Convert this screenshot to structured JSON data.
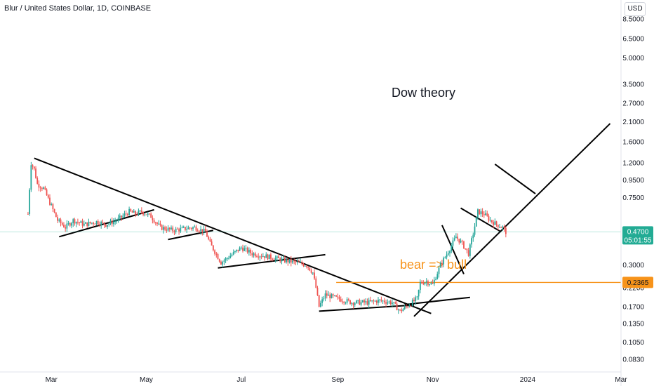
{
  "header": {
    "symbol_title": "Blur / United States Dollar, 1D, COINBASE",
    "currency": "USD"
  },
  "annotations": {
    "dow_theory": "Dow theory",
    "bear_bull": "bear => bull"
  },
  "price_labels": {
    "last_price": "0.4700",
    "countdown": "05:01:55",
    "level": "0.2365"
  },
  "colors": {
    "up": "#26a69a",
    "down": "#ef5350",
    "level": "#f7931a",
    "last": "#22ab94",
    "line": "#000000"
  },
  "chart_data": {
    "type": "candlestick",
    "y_scale": "log",
    "ylim": [
      0.07,
      11
    ],
    "x_range": [
      "2023-01-27",
      "2024-03-01"
    ],
    "x_ticks": [
      {
        "date": "2023-03-01",
        "label": "Mar"
      },
      {
        "date": "2023-05-01",
        "label": "May"
      },
      {
        "date": "2023-07-01",
        "label": "Jul"
      },
      {
        "date": "2023-09-01",
        "label": "Sep"
      },
      {
        "date": "2023-11-01",
        "label": "Nov"
      },
      {
        "date": "2024-01-01",
        "label": "2024"
      },
      {
        "date": "2024-03-01",
        "label": "Mar"
      }
    ],
    "y_ticks": [
      8.5,
      6.5,
      5.0,
      3.5,
      2.7,
      2.1,
      1.6,
      1.2,
      0.95,
      0.75,
      0.55,
      0.47,
      0.3,
      0.22,
      0.17,
      0.135,
      0.105,
      0.083
    ],
    "y_tick_labels": [
      "8.5000",
      "6.5000",
      "5.0000",
      "3.5000",
      "2.7000",
      "2.1000",
      "1.6000",
      "1.2000",
      "0.9500",
      "0.7500",
      "0.5500",
      "0.4700",
      "0.3000",
      "0.2200",
      "0.1700",
      "0.1350",
      "0.1050",
      "0.0830"
    ],
    "price_path": [
      [
        "2023-02-14",
        0.6
      ],
      [
        "2023-02-16",
        1.2
      ],
      [
        "2023-02-18",
        1.1
      ],
      [
        "2023-02-20",
        0.9
      ],
      [
        "2023-02-24",
        0.85
      ],
      [
        "2023-02-28",
        0.7
      ],
      [
        "2023-03-05",
        0.55
      ],
      [
        "2023-03-10",
        0.5
      ],
      [
        "2023-03-15",
        0.55
      ],
      [
        "2023-03-22",
        0.52
      ],
      [
        "2023-03-30",
        0.54
      ],
      [
        "2023-04-05",
        0.52
      ],
      [
        "2023-04-12",
        0.55
      ],
      [
        "2023-04-20",
        0.62
      ],
      [
        "2023-04-24",
        0.6
      ],
      [
        "2023-04-28",
        0.62
      ],
      [
        "2023-05-04",
        0.58
      ],
      [
        "2023-05-10",
        0.5
      ],
      [
        "2023-05-18",
        0.48
      ],
      [
        "2023-05-25",
        0.49
      ],
      [
        "2023-06-01",
        0.5
      ],
      [
        "2023-06-08",
        0.47
      ],
      [
        "2023-06-11",
        0.4
      ],
      [
        "2023-06-14",
        0.36
      ],
      [
        "2023-06-18",
        0.31
      ],
      [
        "2023-06-24",
        0.34
      ],
      [
        "2023-07-01",
        0.38
      ],
      [
        "2023-07-08",
        0.35
      ],
      [
        "2023-07-15",
        0.34
      ],
      [
        "2023-07-22",
        0.33
      ],
      [
        "2023-07-28",
        0.32
      ],
      [
        "2023-08-05",
        0.31
      ],
      [
        "2023-08-12",
        0.3
      ],
      [
        "2023-08-16",
        0.27
      ],
      [
        "2023-08-18",
        0.22
      ],
      [
        "2023-08-20",
        0.17
      ],
      [
        "2023-08-24",
        0.2
      ],
      [
        "2023-09-01",
        0.19
      ],
      [
        "2023-09-10",
        0.18
      ],
      [
        "2023-09-20",
        0.18
      ],
      [
        "2023-09-28",
        0.185
      ],
      [
        "2023-10-06",
        0.18
      ],
      [
        "2023-10-11",
        0.16
      ],
      [
        "2023-10-17",
        0.175
      ],
      [
        "2023-10-22",
        0.19
      ],
      [
        "2023-10-24",
        0.235
      ],
      [
        "2023-10-28",
        0.24
      ],
      [
        "2023-11-01",
        0.23
      ],
      [
        "2023-11-06",
        0.3
      ],
      [
        "2023-11-11",
        0.36
      ],
      [
        "2023-11-16",
        0.44
      ],
      [
        "2023-11-20",
        0.4
      ],
      [
        "2023-11-24",
        0.35
      ],
      [
        "2023-11-27",
        0.46
      ],
      [
        "2023-11-30",
        0.62
      ],
      [
        "2023-12-04",
        0.6
      ],
      [
        "2023-12-08",
        0.55
      ],
      [
        "2023-12-12",
        0.52
      ],
      [
        "2023-12-16",
        0.5
      ],
      [
        "2023-12-18",
        0.47
      ]
    ]
  }
}
